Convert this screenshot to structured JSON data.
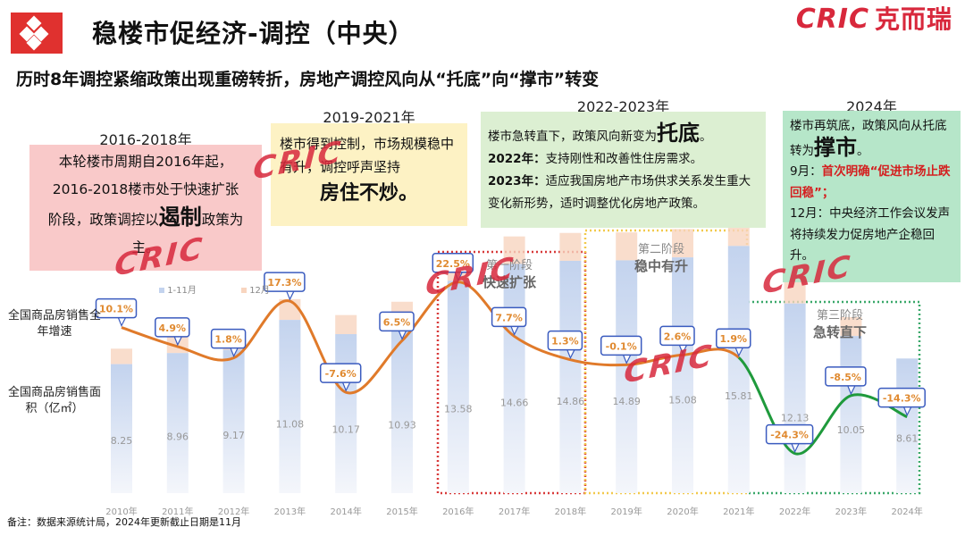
{
  "header": {
    "title": "稳楼市促经济-调控（中央）",
    "brand_latin": "CRIC",
    "brand_cn": "克而瑞",
    "subtitle": "历时8年调控紧缩政策出现重磅转折，房地产调控风向从“托底”向“撑市”转变"
  },
  "periods": [
    {
      "year": "2016-2018年",
      "lines": [
        "本轮楼市周期自2016年起，",
        "2016-2018楼市处于快速扩张",
        "阶段，政策调控以"
      ],
      "bold": "遏制",
      "tail": "政策为主。",
      "color": "#f9c9c9"
    },
    {
      "year": "2019-2021年",
      "text": "楼市得到控制，市场规模稳中有升，调控呼声坚持",
      "bold": "房住不炒。",
      "color": "#fdf2c4"
    },
    {
      "year": "2022-2023年",
      "intro": "楼市急转直下，政策风向新变为",
      "bold": "托底",
      "l2a": "2022年：",
      "l2b": "支持刚性和改善性住房需求。",
      "l3a": "2023年：",
      "l3b": "适应我国房地产市场供求关系发生重大变化新形势，适时调整优化房地产政策。",
      "color": "#dcefd2"
    },
    {
      "year": "2024年",
      "intro": "楼市再筑底，政策风向从托底转为",
      "bold": "撑市",
      "m9a": "9月：",
      "m9b": "首次明确“促进市场止跌回稳”；",
      "m12": "12月：中央经济工作会议发声将持续发力促房地产企稳回升。",
      "color": "#b6e6c9"
    }
  ],
  "chart_data": {
    "type": "bar+line",
    "categories": [
      "2010年",
      "2011年",
      "2012年",
      "2013年",
      "2014年",
      "2015年",
      "2016年",
      "2017年",
      "2018年",
      "2019年",
      "2020年",
      "2021年",
      "2022年",
      "2023年",
      "2024年"
    ],
    "area_values": [
      8.25,
      8.96,
      9.17,
      11.08,
      10.17,
      10.93,
      13.58,
      14.66,
      14.86,
      14.89,
      15.08,
      15.81,
      12.13,
      10.05,
      8.61
    ],
    "growth_labels": [
      "10.1%",
      "4.9%",
      "1.8%",
      "17.3%",
      "-7.6%",
      "6.5%",
      "22.5%",
      "7.7%",
      "1.3%",
      "-0.1%",
      "2.6%",
      "1.9%",
      "-24.3%",
      "-8.5%",
      "-14.3%"
    ],
    "growth_values": [
      10.1,
      4.9,
      1.8,
      17.3,
      -7.6,
      6.5,
      22.5,
      7.7,
      1.3,
      -0.1,
      2.6,
      1.9,
      -24.3,
      -8.5,
      -14.3
    ],
    "legend": [
      "1-11月",
      "12月"
    ],
    "series_labels": {
      "growth": "全国商品房销售全年增速",
      "area": "全国商品房销售面积（亿㎡）"
    },
    "colors": {
      "bar_main": "#c3d3ee",
      "bar_dec": "#f8d5bf",
      "line_pre": "#e07a2a",
      "line_post": "#1f9a3c",
      "label_border": "#3a5bbf",
      "label_text": "#e08a30"
    },
    "stages": [
      {
        "name": "第一阶段",
        "desc": "快速扩张",
        "color": "#d83a3a"
      },
      {
        "name": "第二阶段",
        "desc": "稳中有升",
        "color": "#f2c94c"
      },
      {
        "name": "第三阶段",
        "desc": "急转直下",
        "color": "#3aa86a"
      }
    ]
  },
  "footnote": "备注：数据来源统计局，2024年更新截止日期是11月",
  "watermark": "CRIC"
}
